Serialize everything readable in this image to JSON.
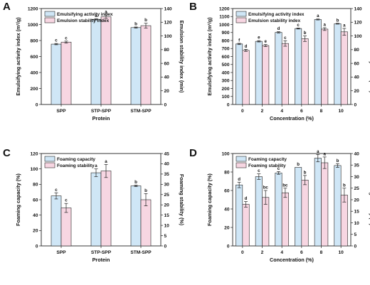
{
  "colors": {
    "bar_a": "#cfe6f6",
    "bar_b": "#f7d6e2",
    "stroke": "#222222"
  },
  "chart_data": [
    {
      "type": "bar",
      "panel": "A",
      "categories": [
        "SPP",
        "STP-SPP",
        "STM-SPP"
      ],
      "xlabel": "Protein",
      "ylabel_left": "Emulsifying activity index (m²/g)",
      "ylabel_right": "Emulsion stability index (min)",
      "ylim_left": [
        0,
        1200
      ],
      "ylim_right": [
        0,
        140
      ],
      "yticks_left": [
        0,
        200,
        400,
        600,
        800,
        1000,
        1200
      ],
      "yticks_right": [
        0,
        20,
        40,
        60,
        80,
        100,
        120,
        140
      ],
      "legend_position": "top-left",
      "series": [
        {
          "name": "Emulsifying activity index",
          "axis": "left",
          "values": [
            755,
            1065,
            962
          ],
          "errors": [
            8,
            8,
            7
          ],
          "labels": [
            "c",
            "a",
            "b"
          ]
        },
        {
          "name": "Emulsion stability index",
          "axis": "right",
          "values": [
            91,
            128,
            115
          ],
          "errors": [
            1.5,
            2.5,
            3.5
          ],
          "labels": [
            "c",
            "a",
            "b"
          ]
        }
      ]
    },
    {
      "type": "bar",
      "panel": "B",
      "categories": [
        "0",
        "2",
        "4",
        "6",
        "8",
        "10"
      ],
      "xlabel": "Concentration (%)",
      "ylabel_left": "Emulsifying activity index (m²/g)",
      "ylabel_right": "Emulsion stability index (min)",
      "ylim_left": [
        0,
        1200
      ],
      "ylim_right": [
        0,
        140
      ],
      "yticks_left": [
        0,
        100,
        200,
        300,
        400,
        500,
        600,
        700,
        800,
        900,
        1000,
        1100,
        1200
      ],
      "yticks_right": [
        0,
        20,
        40,
        60,
        80,
        100,
        120,
        140
      ],
      "legend_position": "top-left",
      "series": [
        {
          "name": "Emulsifying activity index",
          "axis": "left",
          "values": [
            757,
            790,
            902,
            950,
            1063,
            1010
          ],
          "errors": [
            8,
            8,
            8,
            6,
            6,
            5
          ],
          "labels": [
            "f",
            "e",
            "d",
            "c",
            "a",
            "b"
          ]
        },
        {
          "name": "Emulsion stability index",
          "axis": "right",
          "values": [
            79,
            86,
            89,
            96,
            110,
            106
          ],
          "errors": [
            1.5,
            1.5,
            4,
            4,
            2,
            5
          ],
          "labels": [
            "d",
            "e",
            "c",
            "b",
            "a",
            "a"
          ]
        }
      ]
    },
    {
      "type": "bar",
      "panel": "C",
      "categories": [
        "SPP",
        "STP-SPP",
        "STM-SPP"
      ],
      "xlabel": "Protein",
      "ylabel_left": "Foaming capacity (%)",
      "ylabel_right": "Foaming stability (%)",
      "ylim_left": [
        0,
        120
      ],
      "ylim_right": [
        0,
        45
      ],
      "yticks_left": [
        0,
        20,
        40,
        60,
        80,
        100,
        120
      ],
      "yticks_right": [
        0,
        5,
        10,
        15,
        20,
        25,
        30,
        35,
        40,
        45
      ],
      "legend_position": "top-left",
      "series": [
        {
          "name": "Foaming capacity",
          "axis": "left",
          "values": [
            65,
            95,
            78
          ],
          "errors": [
            4,
            5,
            1
          ],
          "labels": [
            "c",
            "a",
            "b"
          ]
        },
        {
          "name": "Foaming stability",
          "axis": "right",
          "values": [
            18.5,
            36.5,
            22.5
          ],
          "errors": [
            2.2,
            3.2,
            3
          ],
          "labels": [
            "c",
            "a",
            "b"
          ]
        }
      ]
    },
    {
      "type": "bar",
      "panel": "D",
      "categories": [
        "0",
        "2",
        "4",
        "6",
        "8",
        "10"
      ],
      "xlabel": "Concentration (%)",
      "ylabel_left": "Foaming capacity (%)",
      "ylabel_right": "Foaming stability (%)",
      "ylim_left": [
        0,
        100
      ],
      "ylim_right": [
        0,
        40
      ],
      "yticks_left": [
        0,
        20,
        40,
        60,
        80,
        100
      ],
      "yticks_right": [
        0,
        5,
        10,
        15,
        20,
        25,
        30,
        35,
        40
      ],
      "legend_position": "top-left",
      "series": [
        {
          "name": "Foaming capacity",
          "axis": "left",
          "values": [
            66,
            75,
            79,
            85,
            95,
            87
          ],
          "errors": [
            3,
            3,
            1.5,
            0,
            4,
            2
          ],
          "labels": [
            "d",
            "c",
            "c",
            "b",
            "a",
            "b"
          ]
        },
        {
          "name": "Foaming stability",
          "axis": "right",
          "values": [
            18,
            21,
            23,
            28.5,
            36,
            22
          ],
          "errors": [
            1.2,
            3,
            2,
            2,
            2.5,
            3
          ],
          "labels": [
            "d",
            "bc",
            "bc",
            "b",
            "a",
            "b"
          ]
        }
      ]
    }
  ]
}
